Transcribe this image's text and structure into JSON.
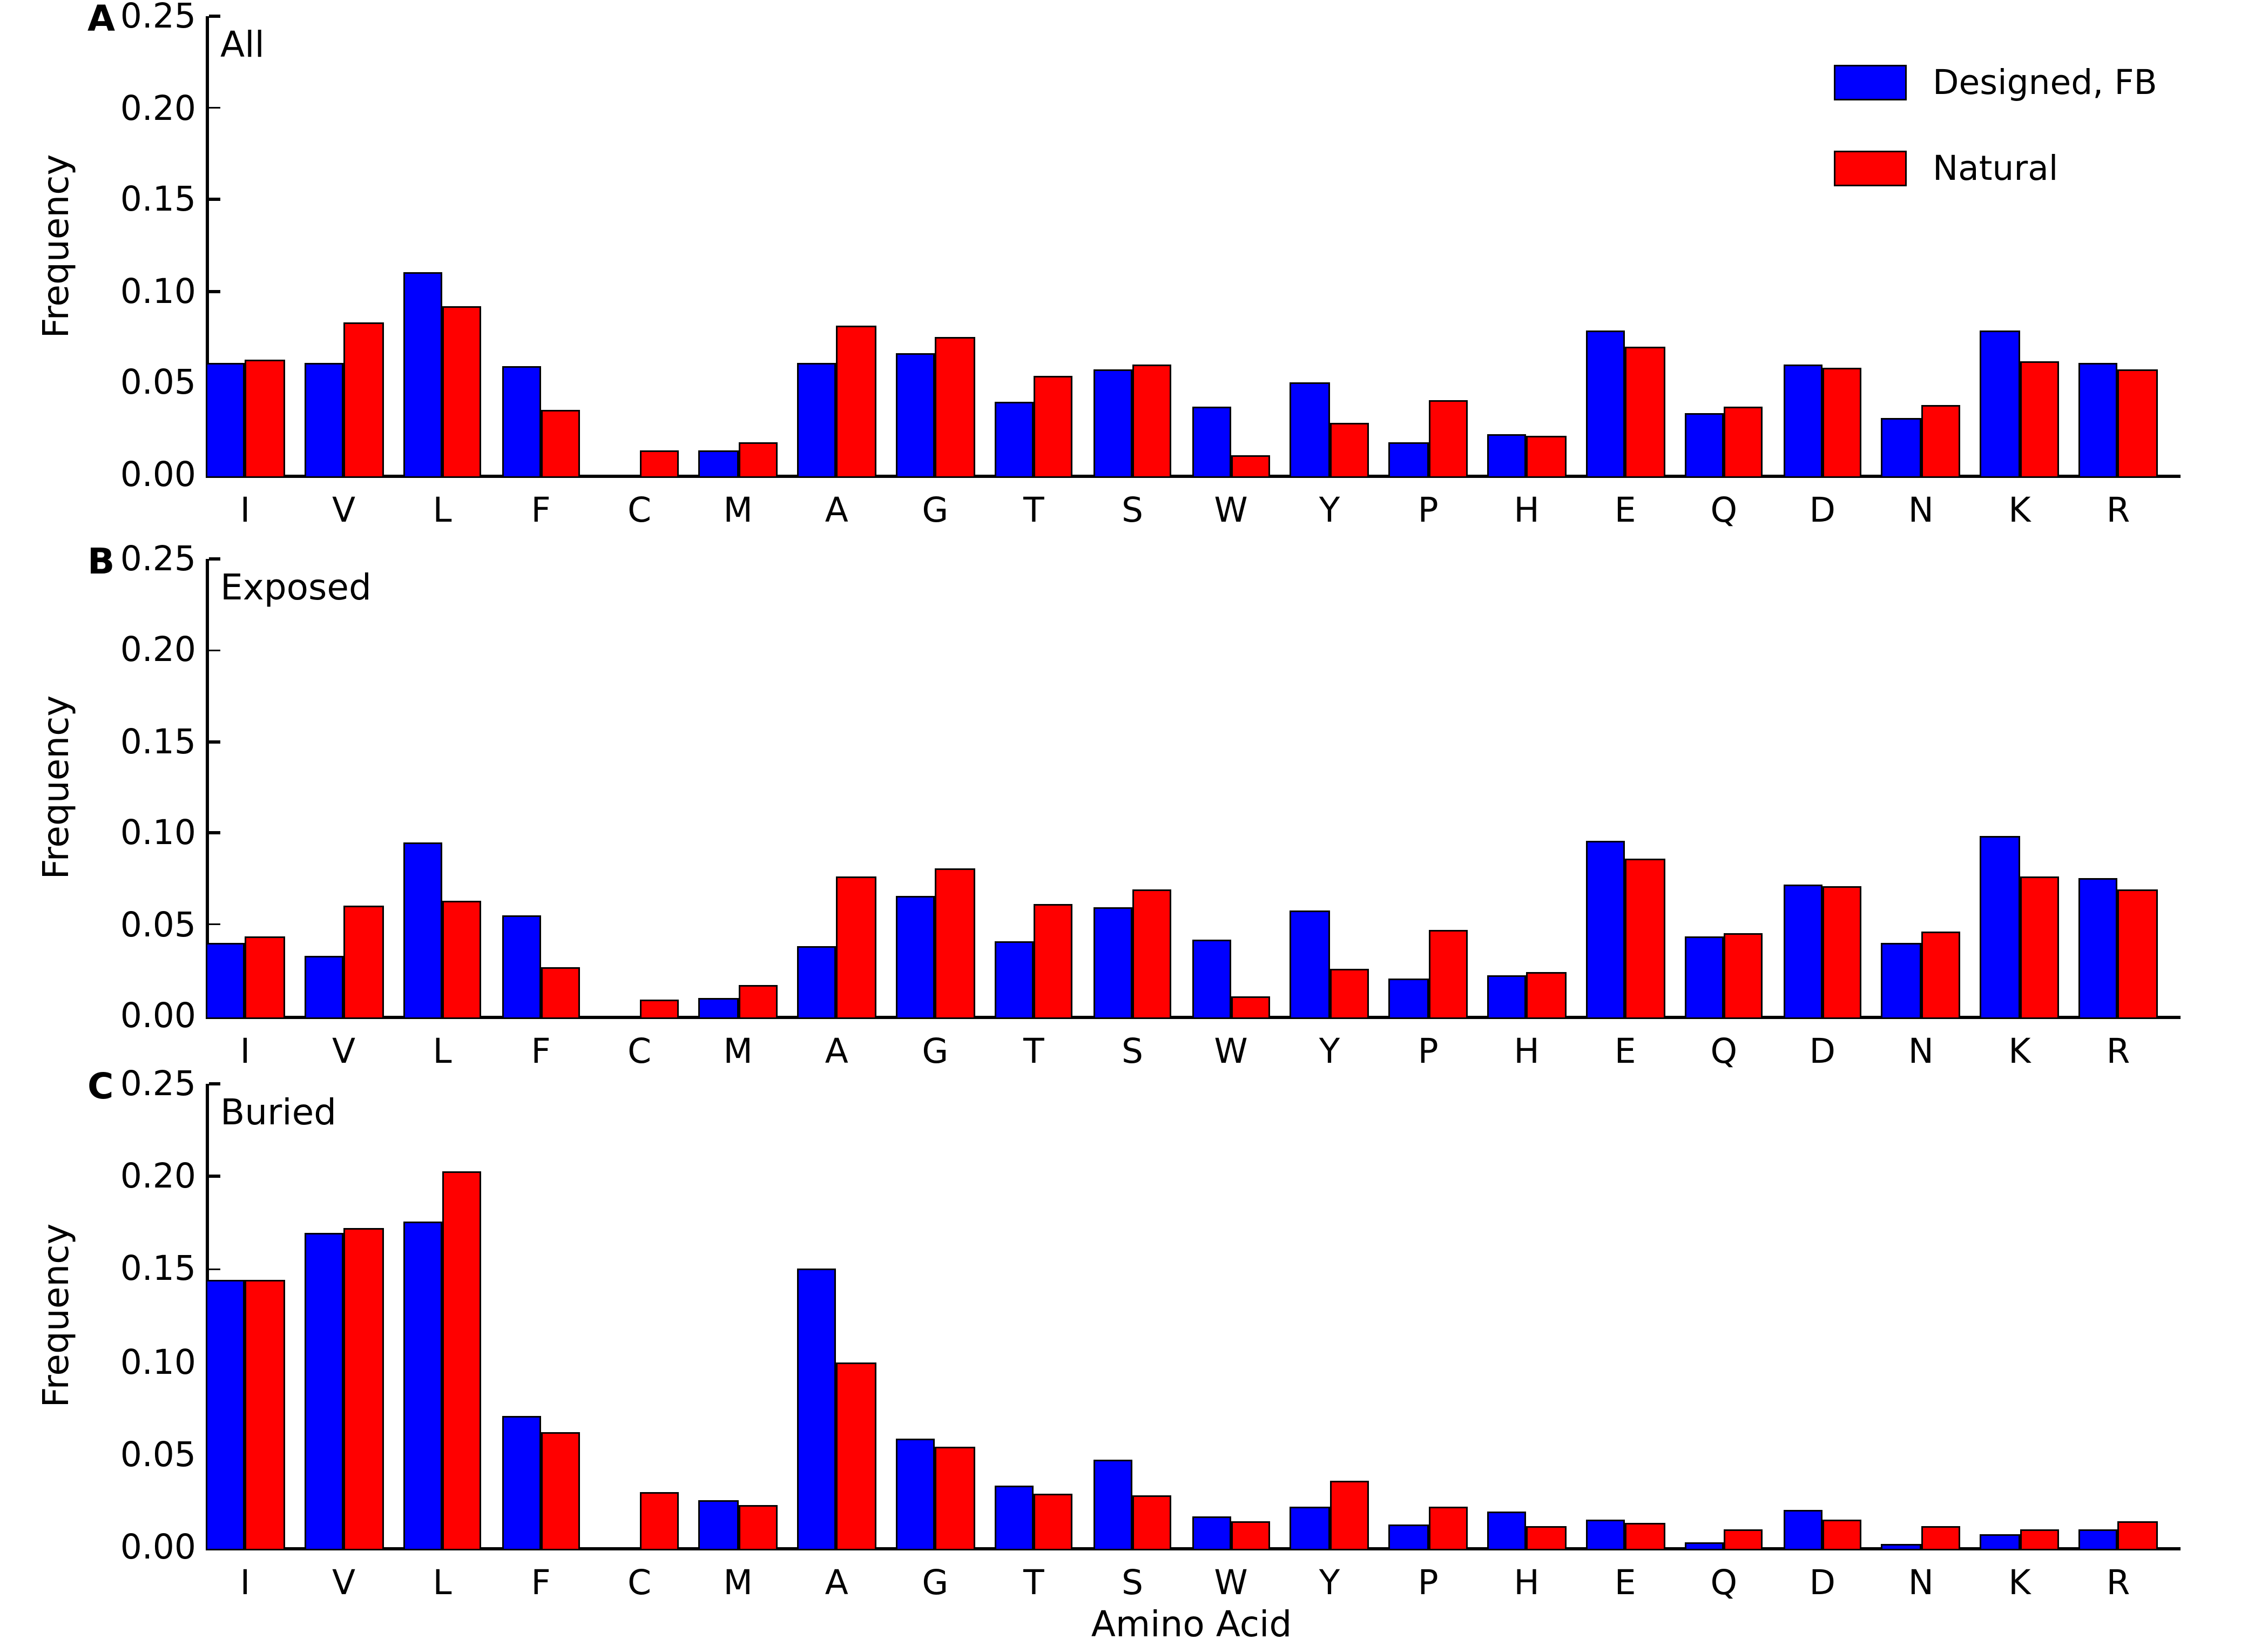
{
  "figure": {
    "ylabel": "Frequency",
    "xlabel": "Amino Acid",
    "background_color": "#ffffff",
    "series_colors": {
      "designed": "#0000ff",
      "natural": "#ff0000"
    },
    "legend": {
      "position": "upper right of panel A",
      "entries": [
        {
          "label": "Designed, FB",
          "color": "#0000ff"
        },
        {
          "label": "Natural",
          "color": "#ff0000"
        }
      ]
    }
  },
  "chart_data": [
    {
      "type": "bar",
      "panel_letter": "A",
      "title": "All",
      "ylabel": "Frequency",
      "xlabel": "",
      "ylim": [
        0,
        0.25
      ],
      "ytick_labels": [
        "0.00",
        "0.05",
        "0.10",
        "0.15",
        "0.20",
        "0.25"
      ],
      "grid": false,
      "categories": [
        "I",
        "V",
        "L",
        "F",
        "C",
        "M",
        "A",
        "G",
        "T",
        "S",
        "W",
        "Y",
        "P",
        "H",
        "E",
        "Q",
        "D",
        "N",
        "K",
        "R"
      ],
      "series": [
        {
          "name": "Designed, FB",
          "color": "#0000ff",
          "values": [
            0.061,
            0.061,
            0.11,
            0.059,
            0.0,
            0.013,
            0.061,
            0.066,
            0.04,
            0.057,
            0.037,
            0.05,
            0.018,
            0.022,
            0.079,
            0.034,
            0.06,
            0.031,
            0.079,
            0.061
          ]
        },
        {
          "name": "Natural",
          "color": "#ff0000",
          "values": [
            0.063,
            0.083,
            0.092,
            0.035,
            0.013,
            0.018,
            0.081,
            0.075,
            0.054,
            0.06,
            0.011,
            0.028,
            0.041,
            0.021,
            0.07,
            0.037,
            0.058,
            0.038,
            0.062,
            0.057
          ]
        }
      ]
    },
    {
      "type": "bar",
      "panel_letter": "B",
      "title": "Exposed",
      "ylabel": "Frequency",
      "xlabel": "",
      "ylim": [
        0,
        0.25
      ],
      "ytick_labels": [
        "0.00",
        "0.05",
        "0.10",
        "0.15",
        "0.20",
        "0.25"
      ],
      "grid": false,
      "categories": [
        "I",
        "V",
        "L",
        "F",
        "C",
        "M",
        "A",
        "G",
        "T",
        "S",
        "W",
        "Y",
        "P",
        "H",
        "E",
        "Q",
        "D",
        "N",
        "K",
        "R"
      ],
      "series": [
        {
          "name": "Designed, FB",
          "color": "#0000ff",
          "values": [
            0.04,
            0.033,
            0.095,
            0.055,
            0.0,
            0.01,
            0.038,
            0.066,
            0.041,
            0.059,
            0.042,
            0.058,
            0.02,
            0.022,
            0.096,
            0.043,
            0.072,
            0.04,
            0.098,
            0.075
          ]
        },
        {
          "name": "Natural",
          "color": "#ff0000",
          "values": [
            0.043,
            0.06,
            0.063,
            0.027,
            0.009,
            0.017,
            0.076,
            0.081,
            0.061,
            0.069,
            0.011,
            0.026,
            0.047,
            0.024,
            0.086,
            0.045,
            0.071,
            0.046,
            0.076,
            0.069
          ]
        }
      ]
    },
    {
      "type": "bar",
      "panel_letter": "C",
      "title": "Buried",
      "ylabel": "Frequency",
      "xlabel": "Amino Acid",
      "ylim": [
        0,
        0.25
      ],
      "ytick_labels": [
        "0.00",
        "0.05",
        "0.10",
        "0.15",
        "0.20",
        "0.25"
      ],
      "grid": false,
      "categories": [
        "I",
        "V",
        "L",
        "F",
        "C",
        "M",
        "A",
        "G",
        "T",
        "S",
        "W",
        "Y",
        "P",
        "H",
        "E",
        "Q",
        "D",
        "N",
        "K",
        "R"
      ],
      "series": [
        {
          "name": "Designed, FB",
          "color": "#0000ff",
          "values": [
            0.144,
            0.17,
            0.176,
            0.071,
            0.0,
            0.025,
            0.15,
            0.059,
            0.033,
            0.047,
            0.017,
            0.022,
            0.012,
            0.019,
            0.015,
            0.003,
            0.02,
            0.002,
            0.007,
            0.01
          ]
        },
        {
          "name": "Natural",
          "color": "#ff0000",
          "values": [
            0.144,
            0.172,
            0.203,
            0.062,
            0.03,
            0.023,
            0.1,
            0.054,
            0.029,
            0.028,
            0.014,
            0.036,
            0.022,
            0.011,
            0.013,
            0.01,
            0.015,
            0.011,
            0.01,
            0.014
          ]
        }
      ]
    }
  ]
}
